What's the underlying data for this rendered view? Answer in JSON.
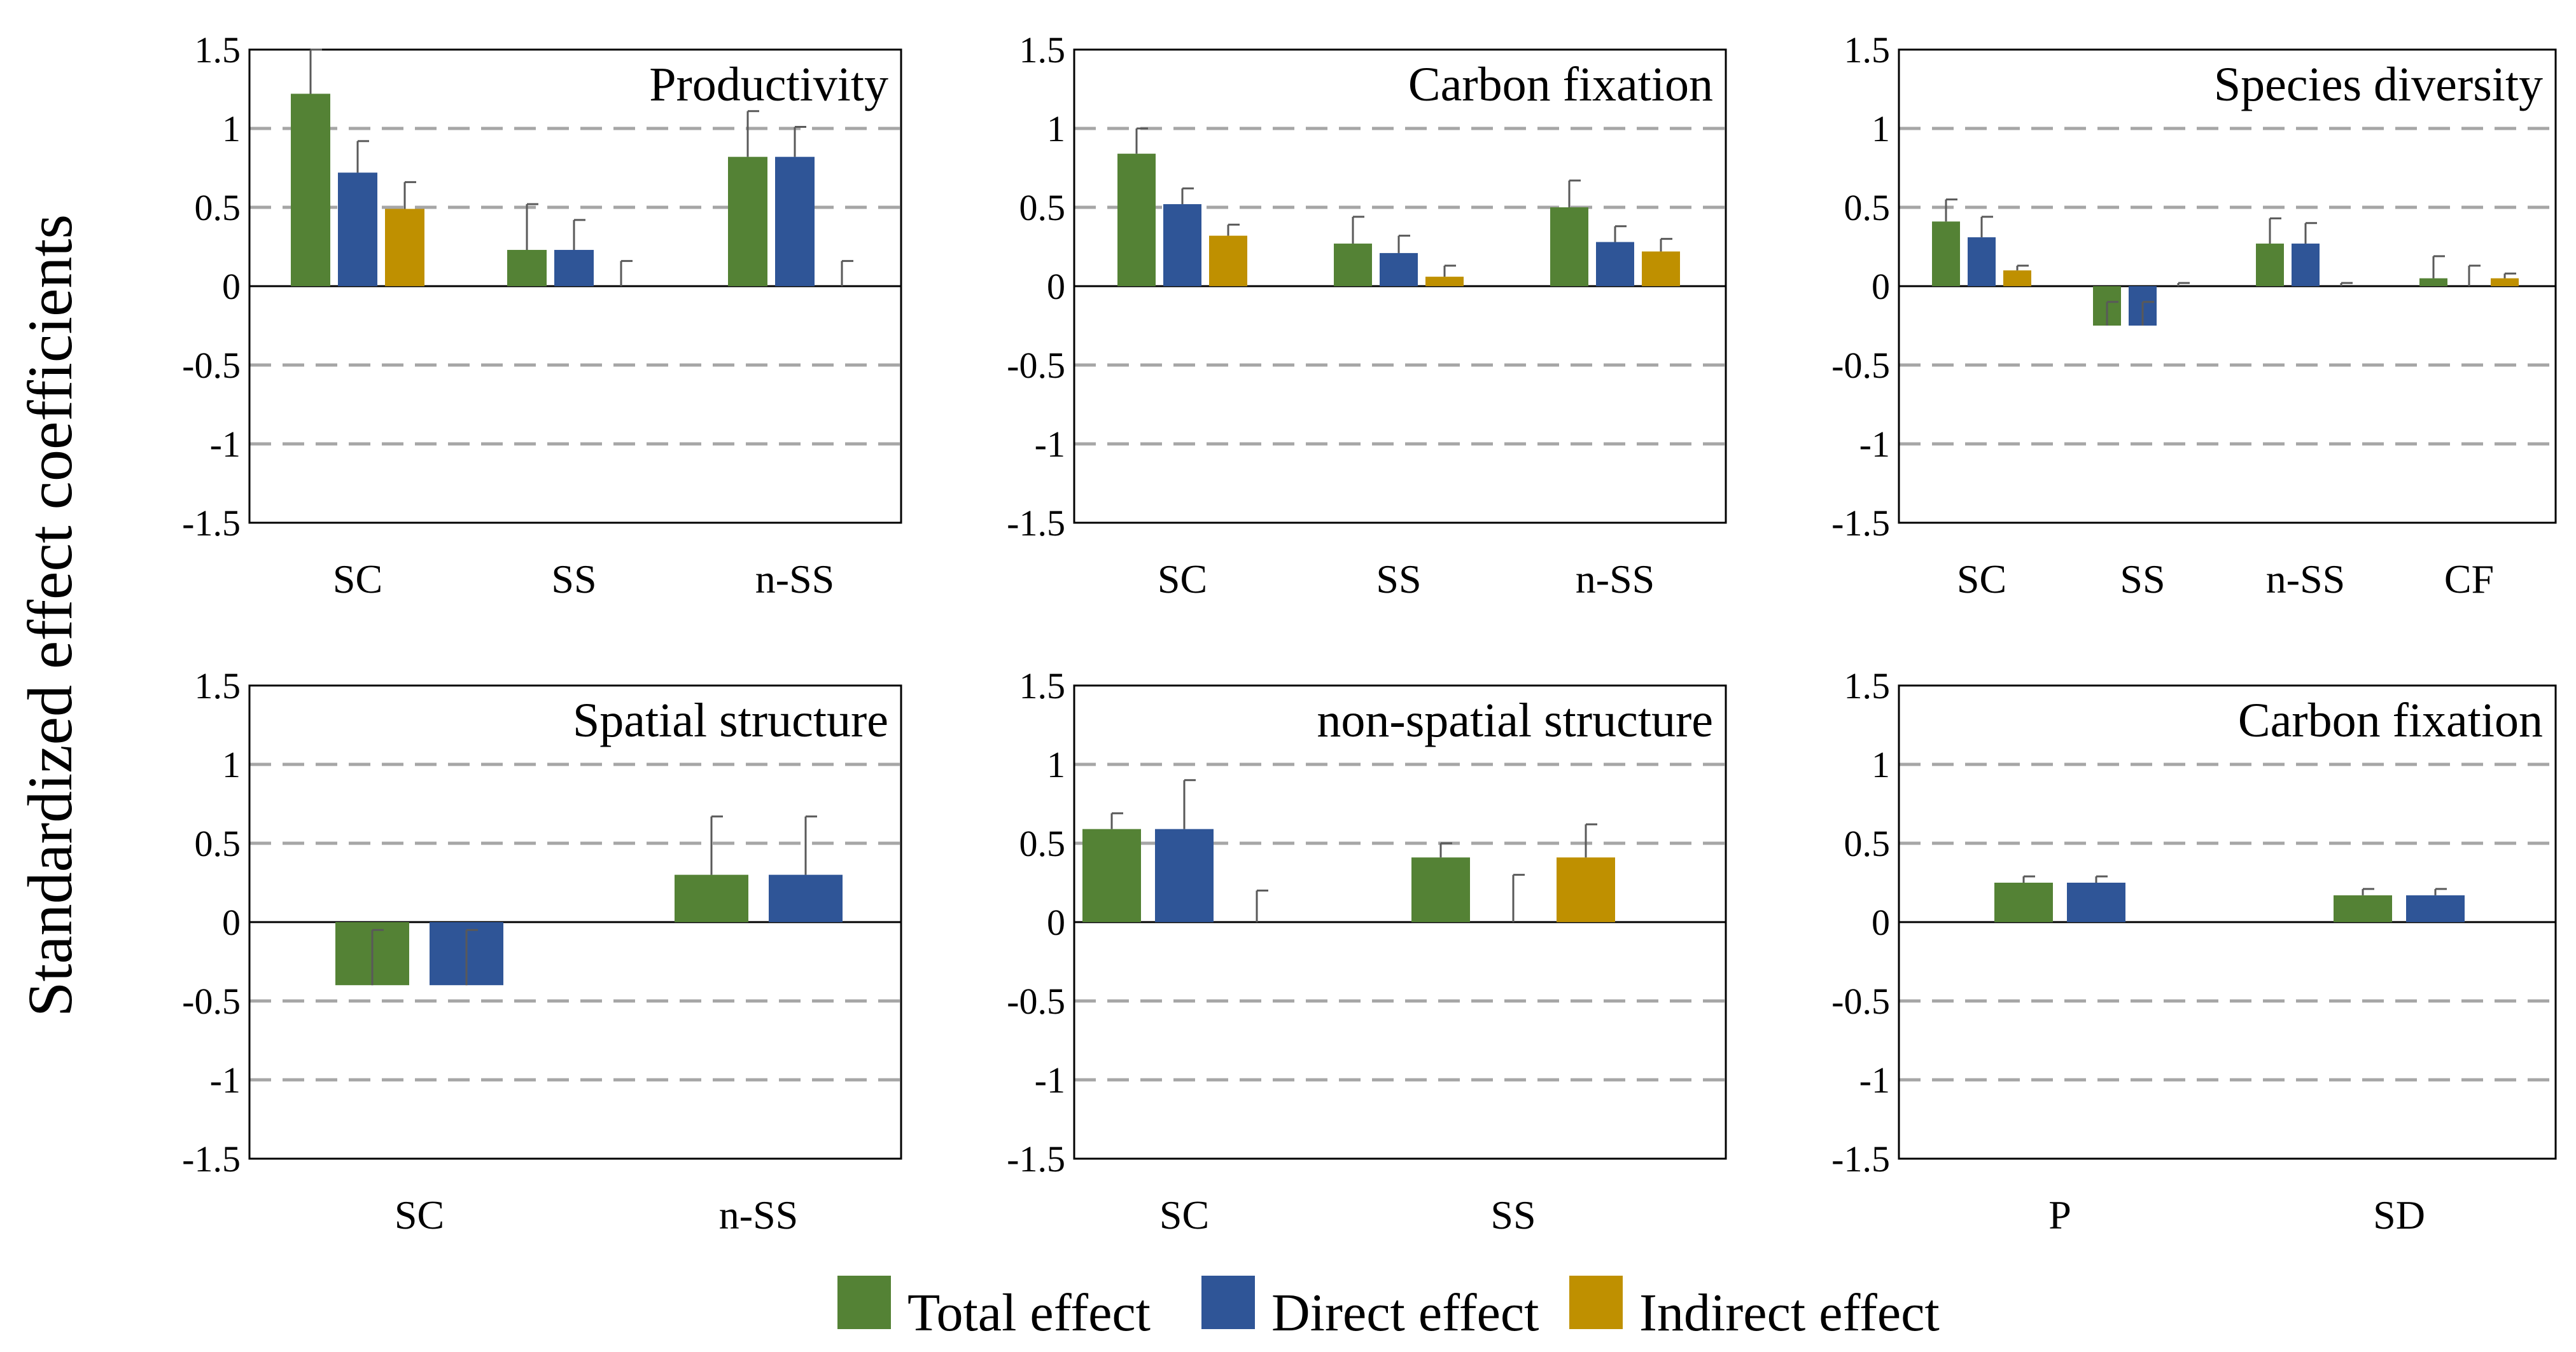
{
  "figure": {
    "ylabel": "Standardized effect coefficients",
    "yticks": [
      "1.5",
      "1",
      "0.5",
      "0",
      "-0.5",
      "-1",
      "-1.5"
    ]
  },
  "legend": [
    {
      "name": "Total effect",
      "color": "#548235"
    },
    {
      "name": "Direct effect",
      "color": "#2F5597"
    },
    {
      "name": "Indirect effect",
      "color": "#BF9000"
    }
  ],
  "chart_data": [
    {
      "type": "bar",
      "title": "Productivity",
      "categories": [
        "SC",
        "SS",
        "n-SS"
      ],
      "ylim": [
        -1.5,
        1.5
      ],
      "grid": true,
      "series": [
        {
          "name": "Total effect",
          "values": [
            1.22,
            0.23,
            0.82
          ],
          "errors": [
            0.28,
            0.29,
            0.29
          ]
        },
        {
          "name": "Direct effect",
          "values": [
            0.72,
            0.23,
            0.82
          ],
          "errors": [
            0.2,
            0.19,
            0.19
          ]
        },
        {
          "name": "Indirect effect",
          "values": [
            0.49,
            0,
            0
          ],
          "errors": [
            0.17,
            0.16,
            0.16
          ]
        }
      ]
    },
    {
      "type": "bar",
      "title": "Carbon fixation",
      "categories": [
        "SC",
        "SS",
        "n-SS"
      ],
      "ylim": [
        -1.5,
        1.5
      ],
      "grid": true,
      "series": [
        {
          "name": "Total effect",
          "values": [
            0.84,
            0.27,
            0.5
          ],
          "errors": [
            0.16,
            0.17,
            0.17
          ]
        },
        {
          "name": "Direct effect",
          "values": [
            0.52,
            0.21,
            0.28
          ],
          "errors": [
            0.1,
            0.11,
            0.1
          ]
        },
        {
          "name": "Indirect effect",
          "values": [
            0.32,
            0.06,
            0.22
          ],
          "errors": [
            0.07,
            0.07,
            0.08
          ]
        }
      ]
    },
    {
      "type": "bar",
      "title": "Species diversity",
      "categories": [
        "SC",
        "SS",
        "n-SS",
        "CF"
      ],
      "ylim": [
        -1.5,
        1.5
      ],
      "grid": true,
      "series": [
        {
          "name": "Total effect",
          "values": [
            0.41,
            -0.25,
            0.27,
            0.05
          ],
          "errors": [
            0.14,
            0.15,
            0.16,
            0.14
          ]
        },
        {
          "name": "Direct effect",
          "values": [
            0.31,
            -0.25,
            0.27,
            0
          ],
          "errors": [
            0.13,
            0.15,
            0.13,
            0.13
          ]
        },
        {
          "name": "Indirect effect",
          "values": [
            0.1,
            0,
            0,
            0.05
          ],
          "errors": [
            0.03,
            0.02,
            0.02,
            0.03
          ]
        }
      ]
    },
    {
      "type": "bar",
      "title": "Spatial structure",
      "categories": [
        "SC",
        "n-SS"
      ],
      "ylim": [
        -1.5,
        1.5
      ],
      "grid": true,
      "series": [
        {
          "name": "Total effect",
          "values": [
            -0.4,
            0.3
          ],
          "errors": [
            0.35,
            0.37
          ]
        },
        {
          "name": "Direct effect",
          "values": [
            -0.4,
            0.3
          ],
          "errors": [
            0.35,
            0.37
          ]
        }
      ]
    },
    {
      "type": "bar",
      "title": "non-spatial structure",
      "categories": [
        "SC",
        "SS"
      ],
      "ylim": [
        -1.5,
        1.5
      ],
      "grid": true,
      "series": [
        {
          "name": "Total effect",
          "values": [
            0.59,
            0.41
          ],
          "errors": [
            0.1,
            0.09
          ]
        },
        {
          "name": "Direct effect",
          "values": [
            0.59,
            0
          ],
          "errors": [
            0.31,
            0.3
          ]
        },
        {
          "name": "Indirect effect",
          "values": [
            0,
            0.41
          ],
          "errors": [
            0.2,
            0.21
          ]
        }
      ]
    },
    {
      "type": "bar",
      "title": "Carbon fixation",
      "categories": [
        "P",
        "SD"
      ],
      "ylim": [
        -1.5,
        1.5
      ],
      "grid": true,
      "series": [
        {
          "name": "Total effect",
          "values": [
            0.25,
            0.17
          ],
          "errors": [
            0.04,
            0.04
          ]
        },
        {
          "name": "Direct effect",
          "values": [
            0.25,
            0.17
          ],
          "errors": [
            0.04,
            0.04
          ]
        }
      ]
    }
  ]
}
